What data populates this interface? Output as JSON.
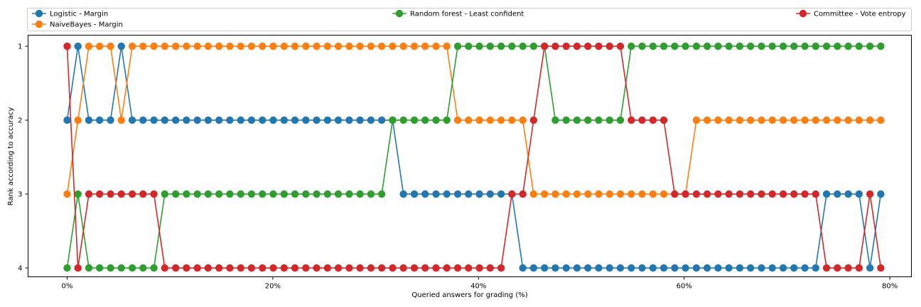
{
  "chart_data": {
    "type": "line",
    "xlabel": "Queried answers for grading (%)",
    "ylabel": "Rank according to accuracy",
    "x_ticks": [
      {
        "value": 0,
        "label": "0%"
      },
      {
        "value": 20,
        "label": "20%"
      },
      {
        "value": 40,
        "label": "40%"
      },
      {
        "value": 60,
        "label": "60%"
      },
      {
        "value": 80,
        "label": "80%"
      }
    ],
    "y_ticks": [
      {
        "value": 1,
        "label": "1"
      },
      {
        "value": 2,
        "label": "2"
      },
      {
        "value": 3,
        "label": "3"
      },
      {
        "value": 4,
        "label": "4"
      }
    ],
    "xlim": [
      -3.8,
      82.1
    ],
    "ylim": [
      4.12,
      0.85
    ],
    "y_inverted": true,
    "grid": false,
    "legend_position": "top",
    "x": [
      0,
      1.05,
      2.11,
      3.16,
      4.22,
      5.27,
      6.33,
      7.38,
      8.44,
      9.49,
      10.55,
      11.6,
      12.66,
      13.71,
      14.77,
      15.82,
      16.88,
      17.93,
      18.99,
      20.04,
      21.1,
      22.15,
      23.21,
      24.26,
      25.32,
      26.37,
      27.43,
      28.48,
      29.54,
      30.59,
      31.65,
      32.7,
      33.76,
      34.81,
      35.87,
      36.92,
      37.98,
      39.03,
      40.09,
      41.14,
      42.2,
      43.25,
      44.31,
      45.36,
      46.42,
      47.47,
      48.53,
      49.58,
      50.64,
      51.69,
      52.75,
      53.8,
      54.86,
      55.91,
      56.97,
      58.02,
      59.08,
      60.13,
      61.19,
      62.24,
      63.3,
      64.35,
      65.41,
      66.46,
      67.52,
      68.57,
      69.63,
      70.68,
      71.74,
      72.79,
      73.85,
      74.9,
      75.96,
      77.01,
      78.07,
      79.12
    ],
    "series": [
      {
        "name": "Logistic - Margin",
        "color": "#1f77b4",
        "values": [
          2,
          1,
          2,
          2,
          2,
          1,
          2,
          2,
          2,
          2,
          2,
          2,
          2,
          2,
          2,
          2,
          2,
          2,
          2,
          2,
          2,
          2,
          2,
          2,
          2,
          2,
          2,
          2,
          2,
          2,
          2,
          3,
          3,
          3,
          3,
          3,
          3,
          3,
          3,
          3,
          3,
          3,
          4,
          4,
          4,
          4,
          4,
          4,
          4,
          4,
          4,
          4,
          4,
          4,
          4,
          4,
          4,
          4,
          4,
          4,
          4,
          4,
          4,
          4,
          4,
          4,
          4,
          4,
          4,
          4,
          3,
          3,
          3,
          3,
          4,
          3
        ]
      },
      {
        "name": "NaiveBayes - Margin",
        "color": "#ff7f0e",
        "values": [
          3,
          2,
          1,
          1,
          1,
          2,
          1,
          1,
          1,
          1,
          1,
          1,
          1,
          1,
          1,
          1,
          1,
          1,
          1,
          1,
          1,
          1,
          1,
          1,
          1,
          1,
          1,
          1,
          1,
          1,
          1,
          1,
          1,
          1,
          1,
          1,
          2,
          2,
          2,
          2,
          2,
          2,
          2,
          3,
          3,
          3,
          3,
          3,
          3,
          3,
          3,
          3,
          3,
          3,
          3,
          3,
          3,
          3,
          2,
          2,
          2,
          2,
          2,
          2,
          2,
          2,
          2,
          2,
          2,
          2,
          2,
          2,
          2,
          2,
          2,
          2
        ]
      },
      {
        "name": "Random forest - Least confident",
        "color": "#2ca02c",
        "values": [
          4,
          3,
          4,
          4,
          4,
          4,
          4,
          4,
          4,
          3,
          3,
          3,
          3,
          3,
          3,
          3,
          3,
          3,
          3,
          3,
          3,
          3,
          3,
          3,
          3,
          3,
          3,
          3,
          3,
          3,
          2,
          2,
          2,
          2,
          2,
          2,
          1,
          1,
          1,
          1,
          1,
          1,
          1,
          1,
          1,
          2,
          2,
          2,
          2,
          2,
          2,
          2,
          1,
          1,
          1,
          1,
          1,
          1,
          1,
          1,
          1,
          1,
          1,
          1,
          1,
          1,
          1,
          1,
          1,
          1,
          1,
          1,
          1,
          1,
          1,
          1
        ]
      },
      {
        "name": "Committee - Vote entropy",
        "color": "#d62728",
        "values": [
          1,
          4,
          3,
          3,
          3,
          3,
          3,
          3,
          3,
          4,
          4,
          4,
          4,
          4,
          4,
          4,
          4,
          4,
          4,
          4,
          4,
          4,
          4,
          4,
          4,
          4,
          4,
          4,
          4,
          4,
          4,
          4,
          4,
          4,
          4,
          4,
          4,
          4,
          4,
          4,
          4,
          3,
          3,
          2,
          1,
          1,
          1,
          1,
          1,
          1,
          1,
          1,
          2,
          2,
          2,
          2,
          3,
          3,
          3,
          3,
          3,
          3,
          3,
          3,
          3,
          3,
          3,
          3,
          3,
          3,
          4,
          4,
          4,
          4,
          3,
          4
        ]
      }
    ]
  }
}
